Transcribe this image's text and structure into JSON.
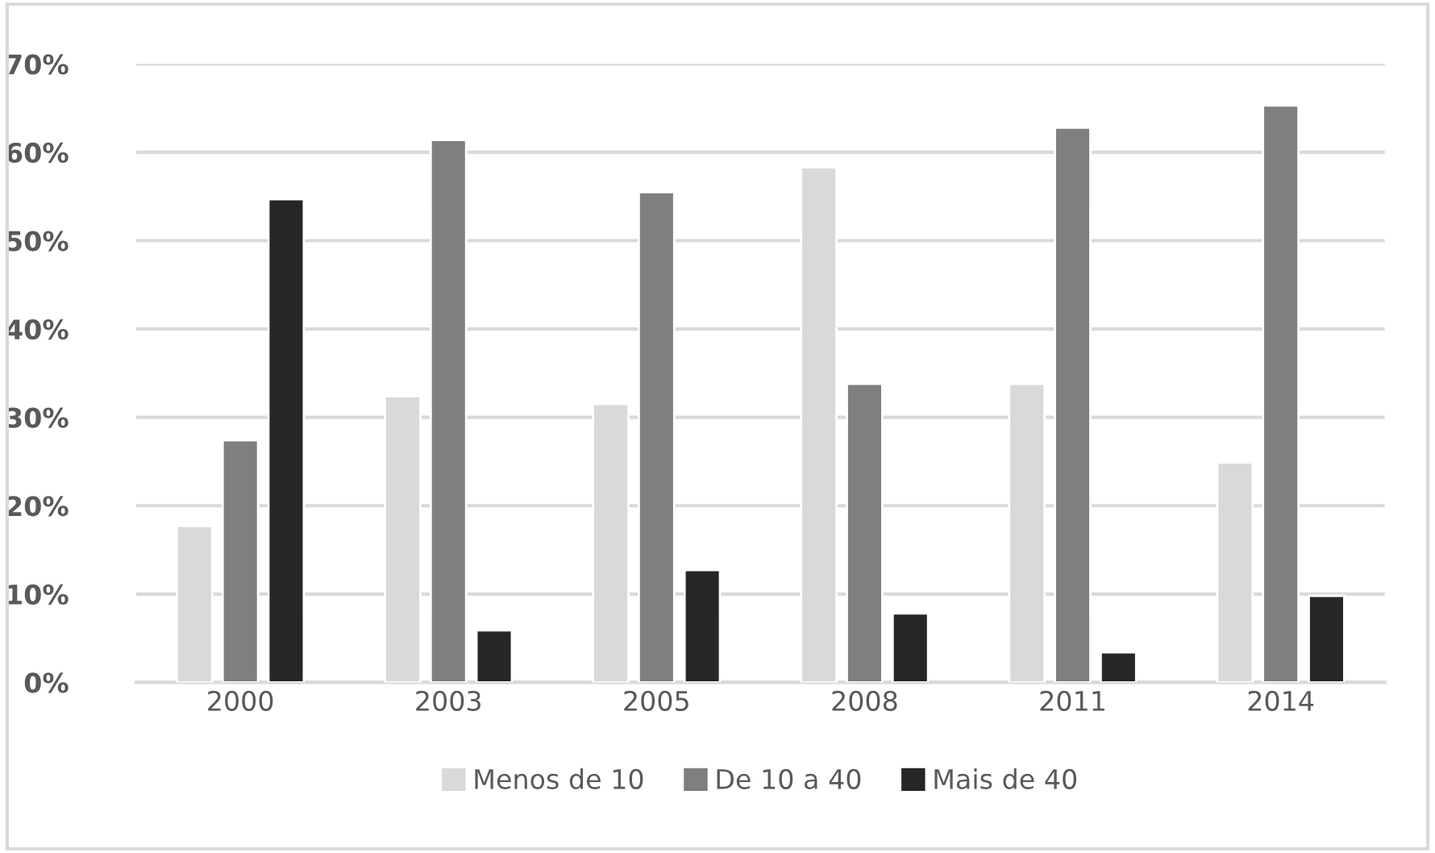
{
  "chart_data": {
    "type": "bar",
    "categories": [
      "2000",
      "2003",
      "2005",
      "2008",
      "2011",
      "2014"
    ],
    "series": [
      {
        "name": "Menos de 10",
        "color": "#d9d9d9",
        "values": [
          17.7,
          32.4,
          31.5,
          58.3,
          33.8,
          24.9
        ]
      },
      {
        "name": "De 10 a 40",
        "color": "#7f7f7f",
        "values": [
          27.4,
          61.4,
          55.5,
          33.8,
          62.8,
          65.3
        ]
      },
      {
        "name": "Mais de 40",
        "color": "#262626",
        "values": [
          54.7,
          5.9,
          12.7,
          7.8,
          3.4,
          9.8
        ]
      }
    ],
    "ylim": [
      0,
      70
    ],
    "yticks": [
      {
        "value": 0,
        "label": "0%"
      },
      {
        "value": 10,
        "label": "10%"
      },
      {
        "value": 20,
        "label": "20%"
      },
      {
        "value": 30,
        "label": "30%"
      },
      {
        "value": 40,
        "label": "40%"
      },
      {
        "value": 50,
        "label": "50%"
      },
      {
        "value": 60,
        "label": "60%"
      },
      {
        "value": 70,
        "label": "70%"
      }
    ],
    "grid": "y",
    "legend": "bottom"
  }
}
